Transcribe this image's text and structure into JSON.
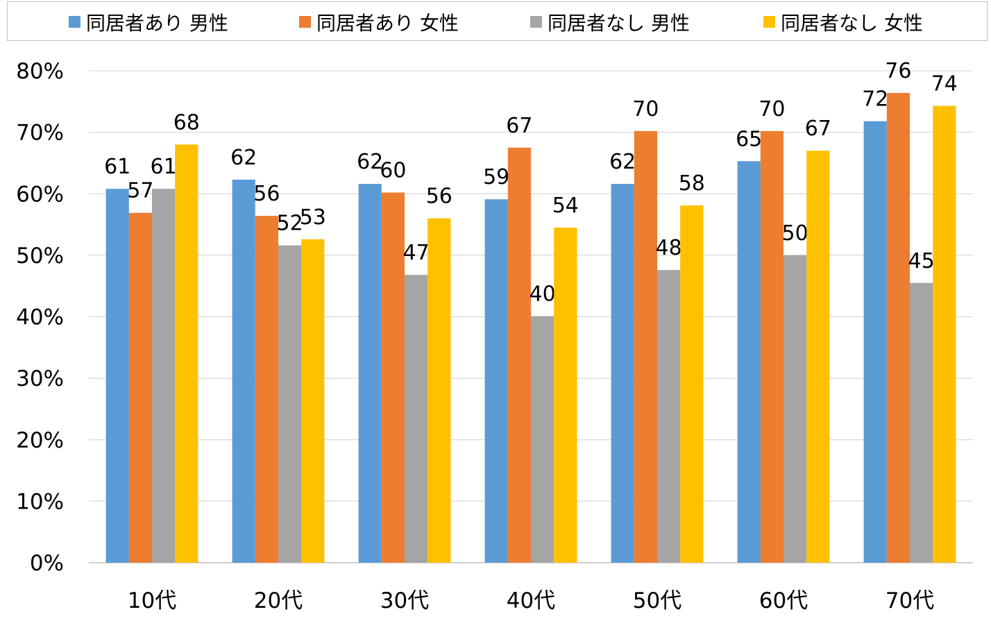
{
  "chart_data": {
    "type": "bar",
    "title": "",
    "xlabel": "",
    "ylabel": "",
    "categories": [
      "10代",
      "20代",
      "30代",
      "40代",
      "50代",
      "60代",
      "70代"
    ],
    "series": [
      {
        "name": "同居者あり 男性",
        "color": "#5b9bd5",
        "values": [
          61,
          62,
          62,
          59,
          62,
          65,
          72
        ],
        "heights": [
          60.8,
          62.3,
          61.6,
          59.1,
          61.6,
          65.3,
          71.8
        ]
      },
      {
        "name": "同居者あり 女性",
        "color": "#ed7d31",
        "values": [
          57,
          56,
          60,
          67,
          70,
          70,
          76
        ],
        "heights": [
          56.9,
          56.4,
          60.2,
          67.5,
          70.2,
          70.2,
          76.4
        ]
      },
      {
        "name": "同居者なし 男性",
        "color": "#a5a5a5",
        "values": [
          61,
          52,
          47,
          40,
          48,
          50,
          45
        ],
        "heights": [
          60.8,
          51.6,
          46.8,
          40.1,
          47.6,
          50.0,
          45.5
        ]
      },
      {
        "name": "同居者なし 女性",
        "color": "#ffc000",
        "values": [
          68,
          53,
          56,
          54,
          58,
          67,
          74
        ],
        "heights": [
          68.0,
          52.6,
          56.0,
          54.5,
          58.1,
          67.0,
          74.3
        ]
      }
    ],
    "yticks": [
      "0%",
      "10%",
      "20%",
      "30%",
      "40%",
      "50%",
      "60%",
      "70%",
      "80%"
    ],
    "ylim": [
      0,
      80
    ],
    "grid": true,
    "legend": "top"
  }
}
